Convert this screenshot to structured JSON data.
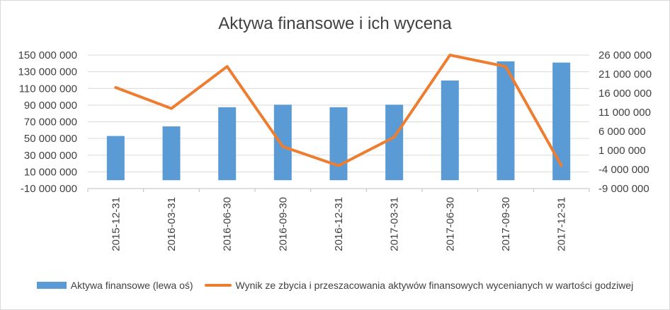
{
  "chart_data": {
    "type": "bar",
    "title": "Aktywa finansowe i ich wycena",
    "categories": [
      "2015-12-31",
      "2016-03-31",
      "2016-06-30",
      "2016-09-30",
      "2016-12-31",
      "2017-03-31",
      "2017-06-30",
      "2017-09-30",
      "2017-12-31"
    ],
    "series": [
      {
        "name": "Aktywa finansowe (lewa oś)",
        "kind": "bar",
        "axis": "left",
        "color": "#5b9bd5",
        "values": [
          53000000,
          64500000,
          87500000,
          90500000,
          87500000,
          90500000,
          119500000,
          142500000,
          141000000
        ]
      },
      {
        "name": "Wynik ze zbycia i przeszacowania aktywów finansowych wycenianych w wartości godziwej",
        "kind": "line",
        "axis": "right",
        "color": "#ed7d31",
        "values": [
          17500000,
          12000000,
          23000000,
          2000000,
          -3000000,
          4500000,
          26000000,
          23000000,
          -3000000
        ]
      }
    ],
    "y_left": {
      "lim": [
        -10000000,
        150000000
      ],
      "ticks": [
        -10000000,
        10000000,
        30000000,
        50000000,
        70000000,
        90000000,
        110000000,
        130000000,
        150000000
      ],
      "tick_labels": [
        "-10 000 000",
        "10 000 000",
        "30 000 000",
        "50 000 000",
        "70 000 000",
        "90 000 000",
        "110 000 000",
        "130 000 000",
        "150 000 000"
      ]
    },
    "y_right": {
      "lim": [
        -9000000,
        26000000
      ],
      "ticks": [
        -9000000,
        -4000000,
        1000000,
        6000000,
        11000000,
        16000000,
        21000000,
        26000000
      ],
      "tick_labels": [
        "-9 000 000",
        "-4 000 000",
        "1 000 000",
        "6 000 000",
        "11 000 000",
        "16 000 000",
        "21 000 000",
        "26 000 000"
      ]
    },
    "grid": true,
    "legend_position": "bottom"
  }
}
